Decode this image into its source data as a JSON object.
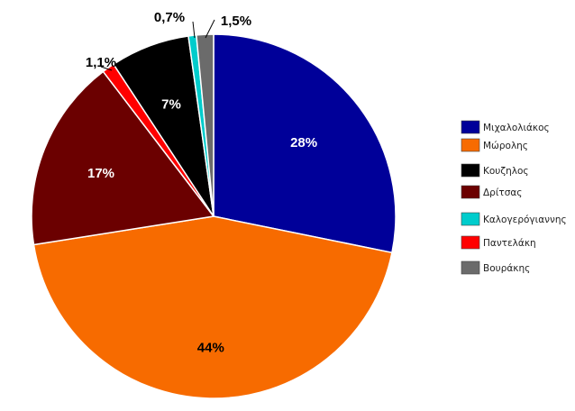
{
  "chart_data": {
    "type": "pie",
    "title": "",
    "legend": "right",
    "slices": [
      {
        "name": "Μιχαλολιάκος",
        "value": 28,
        "label": "28%",
        "color": "#000099",
        "label_color": "#ffffff"
      },
      {
        "name": "Μώρολης",
        "value": 44,
        "label": "44%",
        "color": "#f76b00",
        "label_color": "#000000"
      },
      {
        "name": "Δρίτσας",
        "value": 17,
        "label": "17%",
        "color": "#6b0000",
        "label_color": "#ffffff"
      },
      {
        "name": "Παντελάκη",
        "value": 1.1,
        "label": "1,1%",
        "color": "#ff0000",
        "label_color": "#000000"
      },
      {
        "name": "Κουζηλος",
        "value": 7,
        "label": "7%",
        "color": "#000000",
        "label_color": "#ffffff"
      },
      {
        "name": "Καλογερόγιαννης",
        "value": 0.7,
        "label": "0,7%",
        "color": "#00cccc",
        "label_color": "#000000"
      },
      {
        "name": "Βουράκης",
        "value": 1.5,
        "label": "1,5%",
        "color": "#6b6b6b",
        "label_color": "#000000"
      }
    ],
    "legend_order": [
      "Μιχαλολιάκος",
      "Μώρολης",
      "Κουζηλος",
      "Δρίτσας",
      "Καλογερόγιαννης",
      "Παντελάκη",
      "Βουράκης"
    ]
  }
}
